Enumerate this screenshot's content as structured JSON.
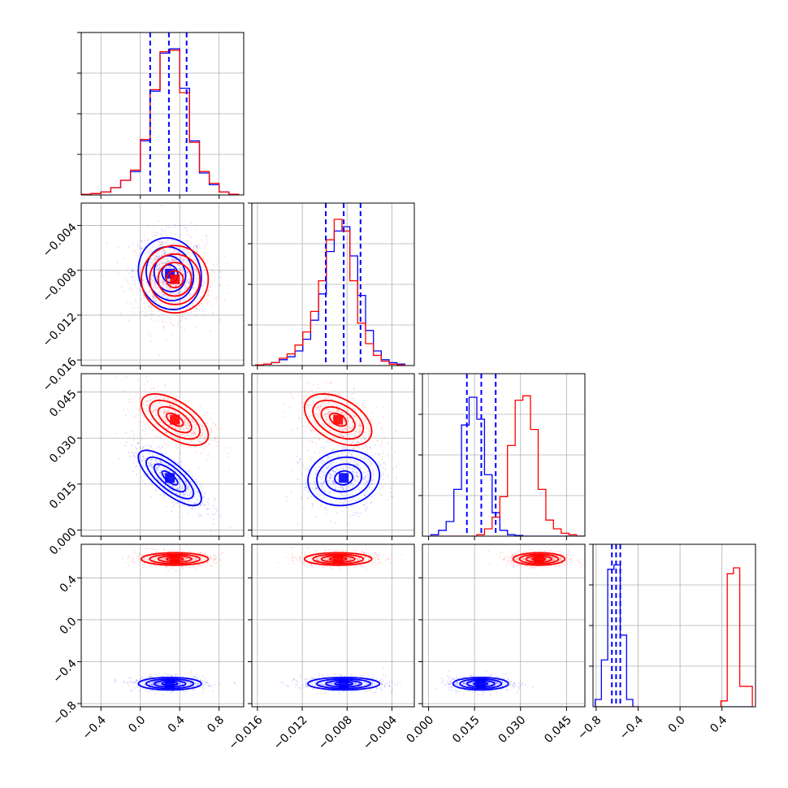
{
  "chart_data": {
    "type": "corner",
    "colors": {
      "blue": "#0000ff",
      "red": "#ff0000"
    },
    "series_order": [
      "blue",
      "red"
    ],
    "grid": true,
    "params": [
      {
        "range": [
          -0.6,
          1.05
        ],
        "ticks": [
          -0.4,
          0.0,
          0.4,
          0.8
        ],
        "tick_labels": [
          "−0.4",
          "0.0",
          "0.4",
          "0.8"
        ]
      },
      {
        "range": [
          -0.0165,
          -0.002
        ],
        "ticks": [
          -0.016,
          -0.012,
          -0.008,
          -0.004
        ],
        "tick_labels": [
          "−0.016",
          "−0.012",
          "−0.008",
          "−0.004"
        ]
      },
      {
        "range": [
          -0.002,
          0.051
        ],
        "ticks": [
          0.0,
          0.015,
          0.03,
          0.045
        ],
        "tick_labels": [
          "0.000",
          "0.015",
          "0.030",
          "0.045"
        ]
      },
      {
        "range": [
          -0.83,
          0.72
        ],
        "ticks": [
          -0.8,
          -0.4,
          0.0,
          0.4
        ],
        "tick_labels": [
          "−0.8",
          "−0.4",
          "0.0",
          "0.4"
        ]
      }
    ],
    "diagonal_y_ticks": 4,
    "quantiles_blue": [
      [
        0.1,
        0.29,
        0.47
      ],
      [
        -0.0099,
        -0.0083,
        -0.0068
      ],
      [
        0.0125,
        0.0172,
        0.0219
      ],
      [
        -0.65,
        -0.61,
        -0.57
      ]
    ],
    "histograms": [
      {
        "bins": [
          -0.55,
          -0.45,
          -0.35,
          -0.25,
          -0.15,
          -0.05,
          0.05,
          0.15,
          0.25,
          0.35,
          0.45,
          0.55,
          0.65,
          0.75,
          0.85,
          0.95
        ],
        "blue": [
          0.005,
          0.01,
          0.02,
          0.05,
          0.1,
          0.16,
          0.37,
          0.71,
          0.97,
          1.0,
          0.73,
          0.37,
          0.15,
          0.07,
          0.02,
          0.005
        ],
        "red": [
          0.005,
          0.01,
          0.02,
          0.05,
          0.1,
          0.17,
          0.38,
          0.72,
          0.98,
          0.99,
          0.7,
          0.36,
          0.16,
          0.08,
          0.02,
          0.005
        ]
      },
      {
        "bins": [
          -0.0158,
          -0.0151,
          -0.0144,
          -0.0137,
          -0.013,
          -0.0123,
          -0.0116,
          -0.0109,
          -0.0102,
          -0.0095,
          -0.0088,
          -0.0081,
          -0.0074,
          -0.0067,
          -0.006,
          -0.0053,
          -0.0046,
          -0.0039,
          -0.0032
        ],
        "blue": [
          0.005,
          0.01,
          0.02,
          0.04,
          0.06,
          0.1,
          0.18,
          0.31,
          0.49,
          0.78,
          0.92,
          0.95,
          0.75,
          0.48,
          0.24,
          0.1,
          0.04,
          0.02,
          0.01
        ],
        "red": [
          0.005,
          0.01,
          0.02,
          0.05,
          0.08,
          0.14,
          0.23,
          0.37,
          0.58,
          0.86,
          1.0,
          0.92,
          0.58,
          0.29,
          0.15,
          0.07,
          0.03,
          0.01,
          0.005
        ]
      },
      {
        "bins": [
          0.002,
          0.0045,
          0.007,
          0.0095,
          0.012,
          0.0145,
          0.017,
          0.0195,
          0.022,
          0.0245,
          0.027,
          0.0295,
          0.032,
          0.0345,
          0.037,
          0.0395,
          0.042,
          0.0445,
          0.047,
          0.0495
        ],
        "blue": [
          0.01,
          0.04,
          0.1,
          0.32,
          0.76,
          0.95,
          0.8,
          0.42,
          0.16,
          0.04,
          0.01,
          0.005,
          0.0,
          0.0,
          0.0,
          0.0,
          0.0,
          0.0,
          0.0,
          0.0
        ],
        "red": [
          0.0,
          0.0,
          0.0,
          0.0,
          0.0,
          0.0,
          0.01,
          0.05,
          0.13,
          0.27,
          0.62,
          0.93,
          0.96,
          0.73,
          0.32,
          0.11,
          0.05,
          0.02,
          0.01,
          0.0
        ]
      },
      {
        "bins": [
          -0.78,
          -0.72,
          -0.66,
          -0.6,
          -0.54,
          -0.48,
          -0.42,
          0.42,
          0.48,
          0.54,
          0.6,
          0.66
        ],
        "blue": [
          0.05,
          0.32,
          0.94,
          0.97,
          0.49,
          0.05,
          0.0,
          0.0,
          0.0,
          0.0,
          0.0,
          0.0
        ],
        "red": [
          0.0,
          0.0,
          0.0,
          0.0,
          0.0,
          0.0,
          0.0,
          0.04,
          0.91,
          0.95,
          0.14,
          0.14
        ]
      }
    ],
    "blobs": [
      {
        "row": 1,
        "col": 0,
        "color": "blue",
        "mean": [
          0.3,
          -0.0083
        ],
        "sd": [
          0.16,
          0.0016
        ],
        "corr": -0.1
      },
      {
        "row": 1,
        "col": 0,
        "color": "red",
        "mean": [
          0.35,
          -0.0088
        ],
        "sd": [
          0.17,
          0.0015
        ],
        "corr": 0.0
      },
      {
        "row": 2,
        "col": 0,
        "color": "red",
        "mean": [
          0.35,
          0.036
        ],
        "sd": [
          0.17,
          0.0042
        ],
        "corr": -0.6
      },
      {
        "row": 2,
        "col": 0,
        "color": "blue",
        "mean": [
          0.3,
          0.017
        ],
        "sd": [
          0.16,
          0.0045
        ],
        "corr": -0.75
      },
      {
        "row": 2,
        "col": 1,
        "color": "red",
        "mean": [
          -0.0088,
          0.036
        ],
        "sd": [
          0.0015,
          0.0042
        ],
        "corr": -0.45
      },
      {
        "row": 2,
        "col": 1,
        "color": "blue",
        "mean": [
          -0.0083,
          0.017
        ],
        "sd": [
          0.0016,
          0.0045
        ],
        "corr": 0.1
      },
      {
        "row": 3,
        "col": 0,
        "color": "red",
        "mean": [
          0.35,
          0.58
        ],
        "sd": [
          0.17,
          0.03
        ],
        "corr": 0.0
      },
      {
        "row": 3,
        "col": 0,
        "color": "blue",
        "mean": [
          0.3,
          -0.61
        ],
        "sd": [
          0.16,
          0.03
        ],
        "corr": 0.0
      },
      {
        "row": 3,
        "col": 1,
        "color": "red",
        "mean": [
          -0.0088,
          0.58
        ],
        "sd": [
          0.0015,
          0.03
        ],
        "corr": 0.0
      },
      {
        "row": 3,
        "col": 1,
        "color": "blue",
        "mean": [
          -0.0083,
          -0.61
        ],
        "sd": [
          0.0016,
          0.03
        ],
        "corr": 0.0
      },
      {
        "row": 3,
        "col": 2,
        "color": "red",
        "mean": [
          0.036,
          0.58
        ],
        "sd": [
          0.0042,
          0.03
        ],
        "corr": 0.0
      },
      {
        "row": 3,
        "col": 2,
        "color": "blue",
        "mean": [
          0.017,
          -0.61
        ],
        "sd": [
          0.0045,
          0.03
        ],
        "corr": 0.0
      }
    ],
    "contour_levels": [
      0.5,
      1.0,
      1.5,
      2.0
    ],
    "contour_fills": [
      0.15,
      0.3,
      0.5,
      0.75
    ]
  }
}
